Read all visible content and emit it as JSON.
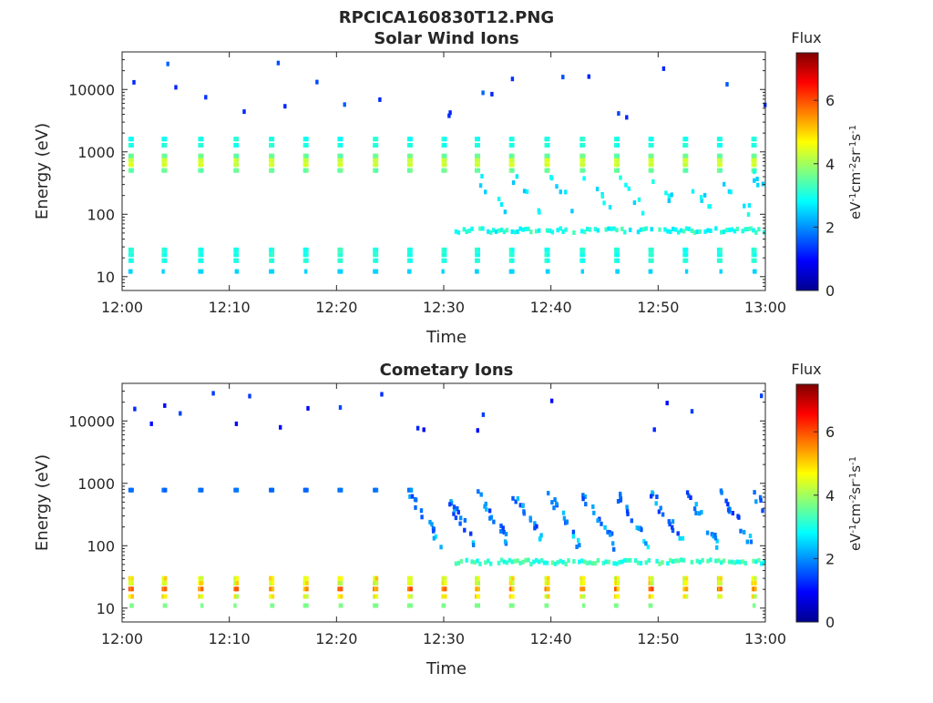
{
  "figure_title": "RPCICA160830T12.PNG",
  "chart_data": [
    {
      "type": "heatmap",
      "title": "Solar Wind Ions",
      "xlabel": "Time",
      "ylabel": "Energy (eV)",
      "x_ticks": [
        "12:00",
        "12:10",
        "12:20",
        "12:30",
        "12:40",
        "12:50",
        "13:00"
      ],
      "x_range": [
        "12:00",
        "13:00"
      ],
      "y_scale": "log",
      "y_ticks": [
        10,
        100,
        1000,
        10000
      ],
      "y_tick_labels": [
        "10",
        "100",
        "1000",
        "10000"
      ],
      "y_range": [
        6,
        40000
      ],
      "colorbar": {
        "label": "Flux",
        "units_base": [
          "eV",
          "cm",
          "sr",
          "s"
        ],
        "units_exp": [
          "-1",
          "-2",
          "-1",
          "-1"
        ],
        "ticks": [
          0,
          2,
          4,
          6
        ],
        "tick_labels": [
          "0",
          "2",
          "4",
          "6"
        ],
        "range": [
          0,
          7.5
        ],
        "colormap": "jet"
      },
      "features": {
        "periodic_bursts_minutes": [
          0.7,
          3.8,
          7.2,
          10.5,
          13.8,
          17.0,
          20.2,
          23.5,
          26.7,
          29.9,
          33.0,
          36.2,
          39.5,
          42.8,
          46.0,
          49.2,
          52.4,
          55.6,
          58.8
        ],
        "main_band_eV": 700,
        "main_band_flux": 3.4,
        "upper_band_eV": 1500,
        "upper_band_flux": 2.8,
        "low_band_eV": 22,
        "low_band_flux": 2.8,
        "line_band_eV": 55,
        "line_band_start_minute": 31,
        "line_band_flux": 3.4,
        "high_energy_spots_eV": 10000,
        "high_energy_flux": 1.2
      }
    },
    {
      "type": "heatmap",
      "title": "Cometary Ions",
      "xlabel": "Time",
      "ylabel": "Energy (eV)",
      "x_ticks": [
        "12:00",
        "12:10",
        "12:20",
        "12:30",
        "12:40",
        "12:50",
        "13:00"
      ],
      "x_range": [
        "12:00",
        "13:00"
      ],
      "y_scale": "log",
      "y_ticks": [
        10,
        100,
        1000,
        10000
      ],
      "y_tick_labels": [
        "10",
        "100",
        "1000",
        "10000"
      ],
      "y_range": [
        6,
        40000
      ],
      "colorbar": {
        "label": "Flux",
        "units_base": [
          "eV",
          "cm",
          "sr",
          "s"
        ],
        "units_exp": [
          "-1",
          "-2",
          "-1",
          "-1"
        ],
        "ticks": [
          0,
          2,
          4,
          6
        ],
        "tick_labels": [
          "0",
          "2",
          "4",
          "6"
        ],
        "range": [
          0,
          7.5
        ],
        "colormap": "jet"
      },
      "features": {
        "periodic_bursts_minutes": [
          0.7,
          3.8,
          7.2,
          10.5,
          13.8,
          17.0,
          20.2,
          23.5,
          26.7,
          29.9,
          33.0,
          36.2,
          39.5,
          42.8,
          46.0,
          49.2,
          52.4,
          55.6,
          58.8
        ],
        "low_band_eV": 22,
        "low_band_flux": 5.2,
        "upper_band_eV": 780,
        "upper_band_flux": 1.6,
        "line_band_eV": 55,
        "line_band_start_minute": 31,
        "line_band_flux": 3.6,
        "dispersion_start_minute": 26,
        "dispersion_flux": 2.4,
        "high_energy_spots_eV": 10000,
        "high_energy_flux": 1.0
      }
    }
  ]
}
